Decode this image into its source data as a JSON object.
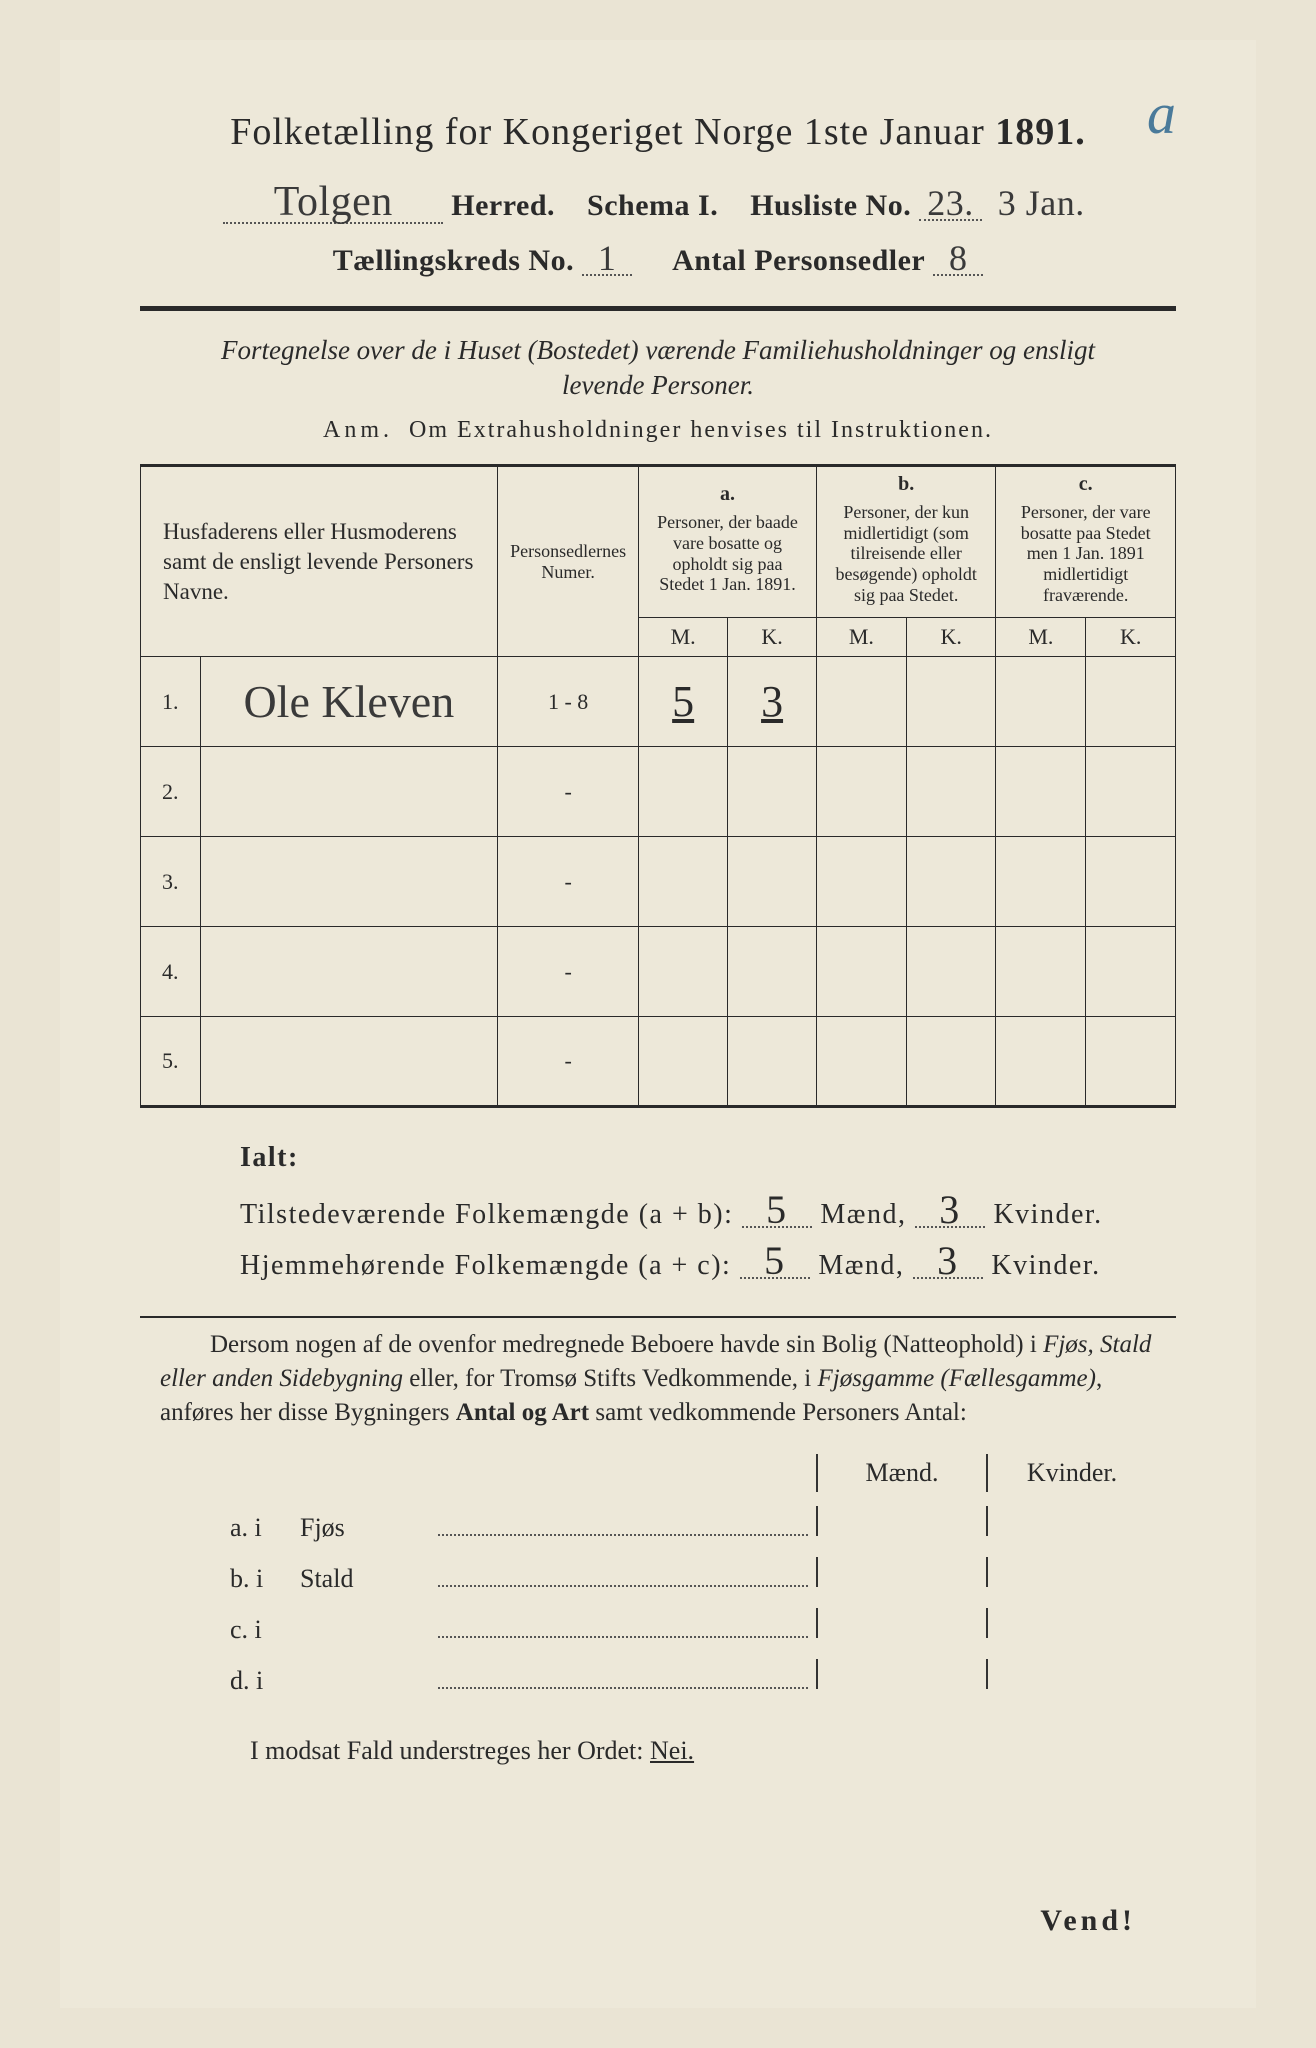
{
  "corner_mark": "a",
  "title_prefix": "Folketælling for Kongeriget Norge 1ste Januar",
  "year": "1891.",
  "header": {
    "herred_value": "Tolgen",
    "herred_label": "Herred.",
    "schema_label": "Schema I.",
    "husliste_label": "Husliste No.",
    "husliste_value": "23.",
    "date_value": "3 Jan.",
    "kreds_label": "Tællingskreds No.",
    "kreds_value": "1",
    "antal_label": "Antal Personsedler",
    "antal_value": "8"
  },
  "subtitle": "Fortegnelse over de i Huset (Bostedet) værende Familiehusholdninger og ensligt levende Personer.",
  "anm_label": "Anm.",
  "anm_text": "Om Extrahusholdninger henvises til Instruktionen.",
  "table": {
    "col_name": "Husfaderens eller Husmoderens samt de ensligt levende Personers Navne.",
    "col_num": "Personsedlernes Numer.",
    "groups": {
      "a": {
        "letter": "a.",
        "text": "Personer, der baade vare bosatte og opholdt sig paa Stedet 1 Jan. 1891."
      },
      "b": {
        "letter": "b.",
        "text": "Personer, der kun midlertidigt (som tilreisende eller besøgende) opholdt sig paa Stedet."
      },
      "c": {
        "letter": "c.",
        "text": "Personer, der vare bosatte paa Stedet men 1 Jan. 1891 midlertidigt fraværende."
      }
    },
    "m": "M.",
    "k": "K.",
    "rows": [
      {
        "num": "1.",
        "name": "Ole Kleven",
        "sedler": "1 - 8",
        "a_m": "5",
        "a_k": "3",
        "b_m": "",
        "b_k": "",
        "c_m": "",
        "c_k": ""
      },
      {
        "num": "2.",
        "name": "",
        "sedler": "-",
        "a_m": "",
        "a_k": "",
        "b_m": "",
        "b_k": "",
        "c_m": "",
        "c_k": ""
      },
      {
        "num": "3.",
        "name": "",
        "sedler": "-",
        "a_m": "",
        "a_k": "",
        "b_m": "",
        "b_k": "",
        "c_m": "",
        "c_k": ""
      },
      {
        "num": "4.",
        "name": "",
        "sedler": "-",
        "a_m": "",
        "a_k": "",
        "b_m": "",
        "b_k": "",
        "c_m": "",
        "c_k": ""
      },
      {
        "num": "5.",
        "name": "",
        "sedler": "-",
        "a_m": "",
        "a_k": "",
        "b_m": "",
        "b_k": "",
        "c_m": "",
        "c_k": ""
      }
    ]
  },
  "totals": {
    "ialt": "Ialt:",
    "line1_label": "Tilstedeværende Folkemængde (a + b):",
    "line1_m": "5",
    "line1_k": "3",
    "line2_label": "Hjemmehørende Folkemængde (a + c):",
    "line2_m": "5",
    "line2_k": "3",
    "maend": "Mænd,",
    "kvinder": "Kvinder."
  },
  "para_text_1": "Dersom nogen af de ovenfor medregnede Beboere havde sin Bolig (Natteophold) i ",
  "para_em_1": "Fjøs, Stald eller anden Sidebygning",
  "para_text_2": " eller, for Tromsø Stifts Vedkommende, i ",
  "para_em_2": "Fjøsgamme (Fællesgamme)",
  "para_text_3": ", anføres her disse Bygningers ",
  "para_b_1": "Antal og Art",
  "para_text_4": " samt vedkommende Personers Antal:",
  "bygn": {
    "maend": "Mænd.",
    "kvinder": "Kvinder.",
    "rows": [
      {
        "lab": "a.  i",
        "typ": "Fjøs"
      },
      {
        "lab": "b.  i",
        "typ": "Stald"
      },
      {
        "lab": "c.  i",
        "typ": ""
      },
      {
        "lab": "d.  i",
        "typ": ""
      }
    ]
  },
  "nei_text": "I modsat Fald understreges her Ordet:",
  "nei_word": "Nei.",
  "vend": "Vend!",
  "colors": {
    "paper": "#ede8d9",
    "bg": "#eae4d4",
    "ink": "#2a2a2a",
    "pencil": "#4a7a9a"
  }
}
